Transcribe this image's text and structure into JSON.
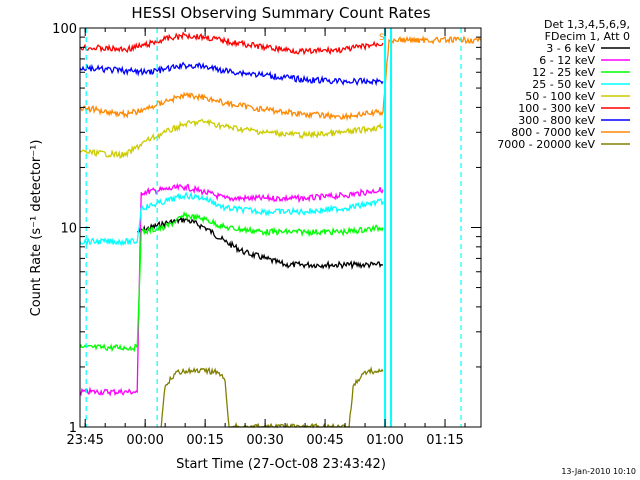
{
  "chart_data": {
    "type": "line",
    "title": "HESSI Observing Summary Count Rates",
    "xlabel": "Start Time (27-Oct-08 23:43:42)",
    "ylabel": "Count Rate (s⁻¹ detector⁻¹)",
    "yscale": "log",
    "ylim": [
      1,
      100
    ],
    "xlim": [
      "23:43:42",
      "01:24:00"
    ],
    "x_ticks": [
      "23:45",
      "00:00",
      "00:15",
      "00:30",
      "00:45",
      "01:00",
      "01:15"
    ],
    "y_ticks": [
      "1",
      "10",
      "100"
    ],
    "grid": false,
    "legend": {
      "placement": "right",
      "header": [
        "Det 1,3,4,5,6,9,",
        "FDecim 1, Att 0"
      ]
    },
    "timestamp": "13-Jan-2010 10:10",
    "marker_label": "S",
    "markers": [
      {
        "time": "23:45:15",
        "color": "#00ffff",
        "style": "dashed"
      },
      {
        "time": "00:03:00",
        "color": "#00ffff",
        "style": "dashed"
      },
      {
        "time": "01:00:00",
        "color": "#00ffff",
        "style": "solid"
      },
      {
        "time": "01:01:30",
        "color": "#00ffff",
        "style": "solid"
      },
      {
        "time": "01:19:00",
        "color": "#00ffff",
        "style": "dashed"
      }
    ],
    "series": [
      {
        "name": "3 - 6 keV",
        "color": "#000000",
        "x": [
          "23:58",
          "00:05",
          "00:10",
          "00:15",
          "00:20",
          "00:25",
          "00:30",
          "00:35",
          "00:40",
          "00:45",
          "00:50",
          "00:55",
          "00:59:30"
        ],
        "y": [
          9.5,
          10.5,
          11.0,
          10.0,
          8.5,
          7.5,
          7.0,
          6.5,
          6.5,
          6.5,
          6.5,
          6.5,
          6.5
        ]
      },
      {
        "name": "6 - 12 keV",
        "color": "#ff00ff",
        "x": [
          "23:43:42",
          "23:58",
          "23:59",
          "00:05",
          "00:10",
          "00:15",
          "00:20",
          "00:30",
          "00:40",
          "00:50",
          "00:59:30"
        ],
        "y": [
          1.5,
          1.5,
          15.0,
          15.5,
          16.0,
          15.0,
          14.0,
          14.0,
          14.0,
          14.5,
          15.5
        ]
      },
      {
        "name": "12 - 25 keV",
        "color": "#00ff00",
        "x": [
          "23:43:42",
          "23:58",
          "23:59",
          "00:05",
          "00:10",
          "00:15",
          "00:20",
          "00:30",
          "00:40",
          "00:50",
          "00:59:30"
        ],
        "y": [
          2.5,
          2.5,
          9.5,
          10.0,
          11.5,
          11.0,
          10.0,
          9.5,
          9.5,
          9.5,
          10.0
        ]
      },
      {
        "name": "25 - 50 keV",
        "color": "#00ffff",
        "x": [
          "23:43:42",
          "23:58",
          "23:59",
          "00:05",
          "00:10",
          "00:15",
          "00:20",
          "00:30",
          "00:40",
          "00:50",
          "00:59:30"
        ],
        "y": [
          8.5,
          8.5,
          12.5,
          13.5,
          14.5,
          14.0,
          12.5,
          12.0,
          12.0,
          12.5,
          13.5
        ]
      },
      {
        "name": "50 - 100 keV",
        "color": "#cccc00",
        "x": [
          "23:43:42",
          "23:55",
          "00:00",
          "00:05",
          "00:10",
          "00:15",
          "00:20",
          "00:30",
          "00:40",
          "00:50",
          "00:59:30"
        ],
        "y": [
          24,
          23,
          27,
          30,
          33,
          34,
          32,
          30,
          29,
          30,
          32
        ]
      },
      {
        "name": "100 - 300 keV",
        "color": "#ff0000",
        "x": [
          "23:43:42",
          "23:55",
          "00:00",
          "00:05",
          "00:10",
          "00:15",
          "00:20",
          "00:30",
          "00:40",
          "00:50",
          "00:59:30"
        ],
        "y": [
          80,
          78,
          82,
          88,
          92,
          90,
          86,
          80,
          76,
          78,
          84
        ]
      },
      {
        "name": "300 - 800 keV",
        "color": "#0000ff",
        "x": [
          "23:43:42",
          "23:55",
          "00:00",
          "00:05",
          "00:10",
          "00:15",
          "00:20",
          "00:30",
          "00:40",
          "00:50",
          "00:59:30"
        ],
        "y": [
          63,
          61,
          60,
          62,
          65,
          64,
          61,
          58,
          55,
          54,
          54
        ]
      },
      {
        "name": "800 - 7000 keV",
        "color": "#ff8800",
        "x": [
          "23:43:42",
          "23:55",
          "00:00",
          "00:05",
          "00:10",
          "00:15",
          "00:20",
          "00:30",
          "00:40",
          "00:50",
          "00:59:30",
          "01:01",
          "01:24"
        ],
        "y": [
          40,
          37,
          39,
          43,
          46,
          45,
          42,
          39,
          37,
          36,
          38,
          87,
          87
        ]
      },
      {
        "name": "7000 - 20000 keV",
        "color": "#808000",
        "x": [
          "00:04",
          "00:05",
          "00:08",
          "00:12",
          "00:15",
          "00:18",
          "00:20",
          "00:21",
          "00:51",
          "00:52",
          "00:55",
          "00:58",
          "00:59:30"
        ],
        "y": [
          1.0,
          1.6,
          1.9,
          1.9,
          1.9,
          1.9,
          1.7,
          1.0,
          1.0,
          1.6,
          1.9,
          1.9,
          1.9
        ]
      }
    ]
  }
}
